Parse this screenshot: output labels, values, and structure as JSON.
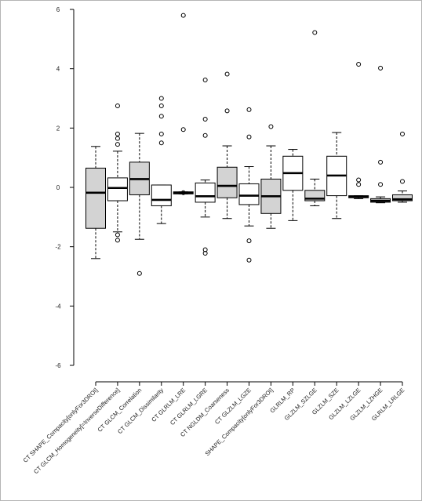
{
  "chart_data": {
    "type": "box",
    "title": "",
    "xlabel": "",
    "ylabel": "",
    "ylim": [
      -6,
      6
    ],
    "yticks": [
      -6,
      -4,
      -2,
      0,
      2,
      4,
      6
    ],
    "grid": false,
    "legend": "none",
    "colors": {
      "filled": "#d3d3d3",
      "empty": "#ffffff",
      "stroke": "#000000"
    },
    "categories": [
      "CT SHAPE_Compacity[onlyFor3DROI]",
      "CT GLCM_Homogeneity[=InverseDifference]",
      "CT GLCM_Correlation",
      "CT GLCM_Dissimilarity",
      "CT GLRLM_LRE",
      "CT GLRLM_LGRE",
      "CT NGLDM_Coarseness",
      "CT GLZLM_LGZE",
      "SHAPE_Compacity[onlyFor3DROI]",
      "GLRLM_RP",
      "GLZLM_SZLGE",
      "GLZLM_SZE",
      "GLZLM_LZLGE",
      "GLZLM_LZHGE",
      "GLRLM_LRLGE"
    ],
    "show_label": [
      true,
      true,
      true,
      true,
      true,
      true,
      true,
      true,
      true,
      true,
      true,
      true,
      true,
      true,
      true
    ],
    "boxes": [
      {
        "min": -2.4,
        "q1": -1.38,
        "median": -0.18,
        "q3": 0.65,
        "max": 1.38,
        "outliers": [],
        "filled": true
      },
      {
        "min": -1.5,
        "q1": -0.45,
        "median": -0.02,
        "q3": 0.32,
        "max": 1.22,
        "outliers": [
          2.75,
          1.8,
          1.65,
          1.45,
          -1.6,
          -1.78
        ],
        "filled": false
      },
      {
        "min": -1.75,
        "q1": -0.25,
        "median": 0.28,
        "q3": 0.85,
        "max": 1.82,
        "outliers": [
          -2.9
        ],
        "filled": true
      },
      {
        "min": -1.22,
        "q1": -0.62,
        "median": -0.42,
        "q3": 0.08,
        "max": 0.08,
        "outliers": [
          3.0,
          2.75,
          2.4,
          1.8,
          1.5
        ],
        "filled": false
      },
      {
        "min": -0.22,
        "q1": -0.22,
        "median": -0.18,
        "q3": -0.15,
        "max": -0.15,
        "outliers": [
          5.8,
          1.95,
          -0.18
        ],
        "filled": false
      },
      {
        "min": -1.0,
        "q1": -0.5,
        "median": -0.3,
        "q3": 0.15,
        "max": 0.25,
        "outliers": [
          3.62,
          2.3,
          1.75,
          -2.1,
          -2.22
        ],
        "filled": false
      },
      {
        "min": -1.05,
        "q1": -0.35,
        "median": 0.05,
        "q3": 0.68,
        "max": 1.4,
        "outliers": [
          3.82,
          2.58
        ],
        "filled": true
      },
      {
        "min": -1.3,
        "q1": -0.58,
        "median": -0.28,
        "q3": 0.12,
        "max": 0.7,
        "outliers": [
          2.62,
          1.7,
          -1.8,
          -2.45
        ],
        "filled": false
      },
      {
        "min": -1.38,
        "q1": -0.88,
        "median": -0.3,
        "q3": 0.28,
        "max": 1.4,
        "outliers": [
          2.05
        ],
        "filled": true
      },
      {
        "min": -1.12,
        "q1": -0.1,
        "median": 0.48,
        "q3": 1.05,
        "max": 1.28,
        "outliers": [],
        "filled": false
      },
      {
        "min": -0.62,
        "q1": -0.45,
        "median": -0.38,
        "q3": -0.1,
        "max": 0.28,
        "outliers": [
          5.22
        ],
        "filled": true
      },
      {
        "min": -1.05,
        "q1": -0.28,
        "median": 0.4,
        "q3": 1.05,
        "max": 1.85,
        "outliers": [],
        "filled": false
      },
      {
        "min": -0.38,
        "q1": -0.35,
        "median": -0.32,
        "q3": -0.28,
        "max": -0.28,
        "outliers": [
          4.15,
          0.25,
          0.1
        ],
        "filled": true
      },
      {
        "min": -0.52,
        "q1": -0.5,
        "median": -0.45,
        "q3": -0.38,
        "max": -0.32,
        "outliers": [
          4.02,
          0.85,
          0.1
        ],
        "filled": true
      },
      {
        "min": -0.5,
        "q1": -0.45,
        "median": -0.4,
        "q3": -0.25,
        "max": -0.12,
        "outliers": [
          1.8,
          0.2
        ],
        "filled": true
      }
    ]
  }
}
